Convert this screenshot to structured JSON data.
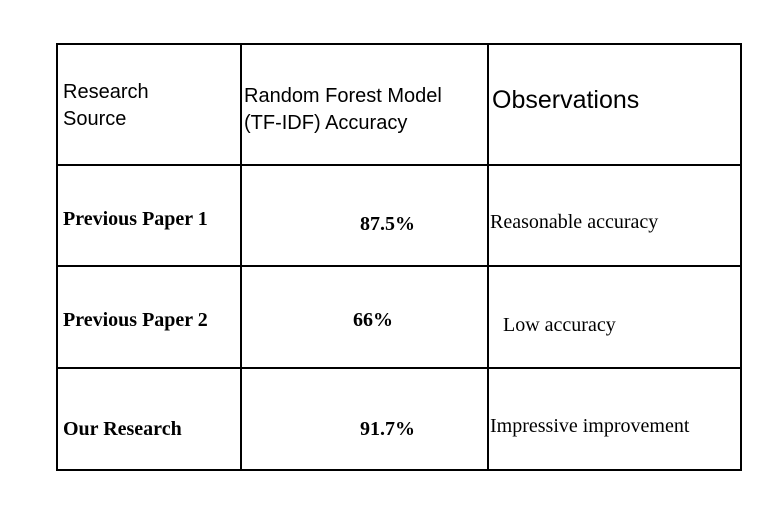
{
  "table": {
    "headers": [
      "Research Source",
      "Random Forest Model (TF-IDF) Accuracy",
      "Observations"
    ],
    "header_lines": {
      "source": [
        "Research",
        "Source"
      ],
      "accuracy": [
        "Random Forest Model",
        "(TF-IDF) Accuracy"
      ],
      "observations": "Observations"
    },
    "rows": [
      {
        "source": "Previous Paper 1",
        "accuracy": "87.5%",
        "observation": "Reasonable accuracy"
      },
      {
        "source": "Previous Paper 2",
        "accuracy": "66%",
        "observation": "Low accuracy"
      },
      {
        "source": "Our Research",
        "accuracy": "91.7%",
        "observation": "Impressive improvement"
      }
    ]
  }
}
